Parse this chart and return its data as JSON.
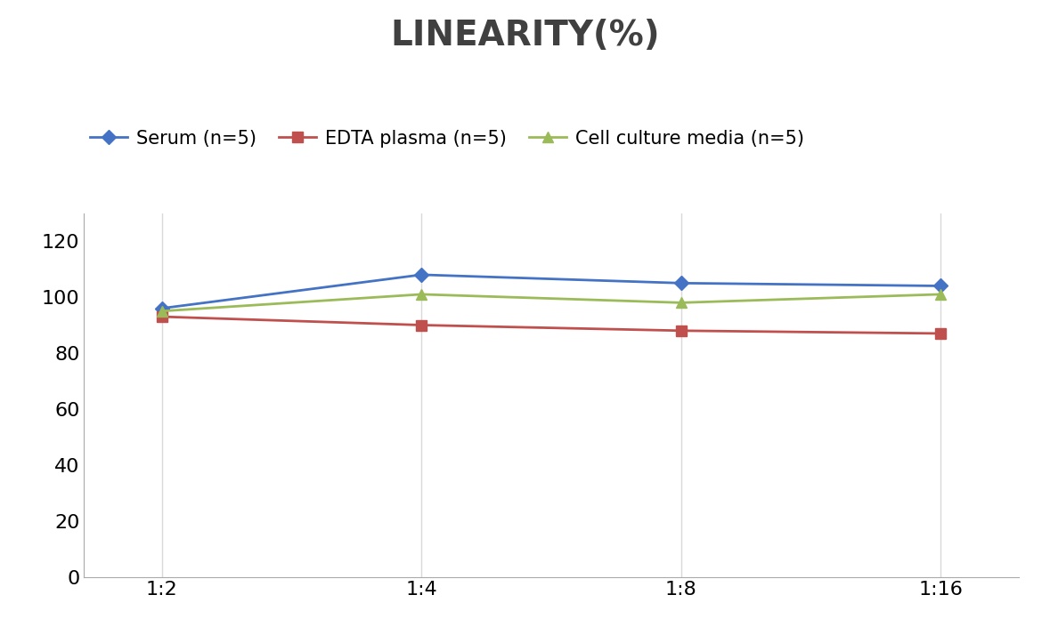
{
  "title": "LINEARITY(%)",
  "x_labels": [
    "1:2",
    "1:4",
    "1:8",
    "1:16"
  ],
  "x_positions": [
    0,
    1,
    2,
    3
  ],
  "series": [
    {
      "label": "Serum (n=5)",
      "values": [
        96,
        108,
        105,
        104
      ],
      "color": "#4472C4",
      "marker": "D",
      "markersize": 8,
      "linewidth": 2
    },
    {
      "label": "EDTA plasma (n=5)",
      "values": [
        93,
        90,
        88,
        87
      ],
      "color": "#C0504D",
      "marker": "s",
      "markersize": 8,
      "linewidth": 2
    },
    {
      "label": "Cell culture media (n=5)",
      "values": [
        95,
        101,
        98,
        101
      ],
      "color": "#9BBB59",
      "marker": "^",
      "markersize": 8,
      "linewidth": 2
    }
  ],
  "ylim": [
    0,
    130
  ],
  "yticks": [
    0,
    20,
    40,
    60,
    80,
    100,
    120
  ],
  "title_fontsize": 28,
  "tick_fontsize": 16,
  "legend_fontsize": 15,
  "background_color": "#ffffff",
  "grid_color": "#d9d9d9",
  "title_color": "#404040"
}
